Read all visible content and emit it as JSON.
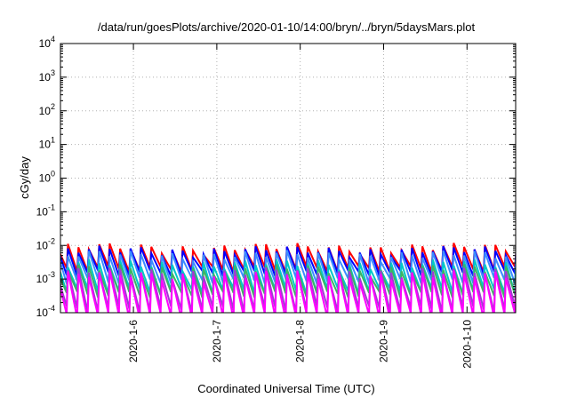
{
  "chart_data": {
    "type": "line",
    "title": "/data/run/goesPlots/archive/2020-01-10/14:00/bryn/../bryn/5daysMars.plot",
    "xlabel": "Coordinated Universal Time (UTC)",
    "ylabel": "cGy/day",
    "yscale": "log",
    "ylim": [
      0.0001,
      10000
    ],
    "xlim": [
      "2020-01-05 03:00",
      "2020-01-10 14:00"
    ],
    "grid": true,
    "x_ticks": [
      "2020-1-6",
      "2020-1-7",
      "2020-1-8",
      "2020-1-9",
      "2020-1-10"
    ],
    "y_ticks": [
      {
        "base": "10",
        "exp": "-4"
      },
      {
        "base": "10",
        "exp": "-3"
      },
      {
        "base": "10",
        "exp": "-2"
      },
      {
        "base": "10",
        "exp": "-1"
      },
      {
        "base": "10",
        "exp": "0"
      },
      {
        "base": "10",
        "exp": "1"
      },
      {
        "base": "10",
        "exp": "2"
      },
      {
        "base": "10",
        "exp": "3"
      },
      {
        "base": "10",
        "exp": "4"
      }
    ],
    "cycle_hours": 3,
    "series": [
      {
        "color": "#ff0000",
        "peak": 0.0085,
        "trough": 0.002
      },
      {
        "color": "#0000ff",
        "peak": 0.007,
        "trough": 0.0015
      },
      {
        "color": "#3c8cff",
        "peak": 0.0052,
        "trough": 0.0009
      },
      {
        "color": "#00c8c8",
        "peak": 0.0028,
        "trough": 0.00045
      },
      {
        "color": "#3cb464",
        "peak": 0.002,
        "trough": 0.00035
      },
      {
        "color": "#a03cd2",
        "peak": 0.0016,
        "trough": 0.00013
      },
      {
        "color": "#ff00ff",
        "peak": 0.0013,
        "trough": 8e-05
      }
    ]
  }
}
